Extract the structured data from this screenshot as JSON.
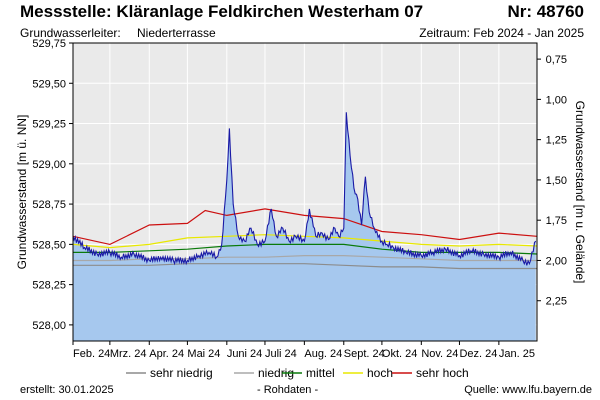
{
  "header": {
    "title": "Messstelle: Kläranlage Feldkirchen Westerham 07",
    "nr": "Nr: 48760",
    "aquifer_label": "Grundwasserleiter:",
    "aquifer_value": "Niederterrasse",
    "period": "Zeitraum: Feb 2024 - Jan 2025"
  },
  "footer": {
    "created": "erstellt:  30.01.2025",
    "rawdata": "- Rohdaten -",
    "source": "Quelle: www.lfu.bayern.de"
  },
  "colors": {
    "measured": "#1a1aa6",
    "fill": "#a6c8ee",
    "sehr_niedrig": "#8c8c8c",
    "niedrig": "#a8a8a8",
    "mittel": "#0a7a0a",
    "hoch": "#e8e800",
    "sehr_hoch": "#cc1010"
  },
  "chart_data": {
    "type": "line",
    "ylabel_left": "Grundwasserstand [m ü. NN]",
    "ylabel_right": "Grundwasserstand [m u. Gelände]",
    "ylim_left": [
      527.9,
      529.75
    ],
    "ylim_right": [
      2.5,
      0.65
    ],
    "yticks_left": [
      "529,75",
      "529,50",
      "529,25",
      "529,00",
      "528,75",
      "528,50",
      "528,25",
      "528,00"
    ],
    "yticks_left_values": [
      529.75,
      529.5,
      529.25,
      529.0,
      528.75,
      528.5,
      528.25,
      528.0
    ],
    "yticks_right": [
      "0,75",
      "1,00",
      "1,25",
      "1,50",
      "1,75",
      "2,00",
      "2,25"
    ],
    "yticks_right_values": [
      0.75,
      1.0,
      1.25,
      1.5,
      1.75,
      2.0,
      2.25
    ],
    "xlim": [
      "2024-02-01",
      "2025-01-31"
    ],
    "x_ticks": [
      "Feb. 24",
      "Mrz. 24",
      "Apr. 24",
      "Mai 24",
      "Juni 24",
      "Juli 24",
      "Aug. 24",
      "Sept. 24",
      "Okt. 24",
      "Nov. 24",
      "Dez. 24",
      "Jan. 25"
    ],
    "x_tick_dates": [
      "2024-02-01",
      "2024-03-01",
      "2024-04-01",
      "2024-05-01",
      "2024-06-01",
      "2024-07-01",
      "2024-08-01",
      "2024-09-01",
      "2024-10-01",
      "2024-11-01",
      "2024-12-01",
      "2025-01-01"
    ],
    "grid": true,
    "legend_placement": "bottom",
    "series": [
      {
        "name": "Rohdaten",
        "key": "measured",
        "x": [
          "2024-02-01",
          "2024-02-10",
          "2024-02-20",
          "2024-03-01",
          "2024-03-10",
          "2024-03-20",
          "2024-04-01",
          "2024-04-10",
          "2024-04-20",
          "2024-05-01",
          "2024-05-10",
          "2024-05-18",
          "2024-05-24",
          "2024-05-28",
          "2024-06-01",
          "2024-06-03",
          "2024-06-06",
          "2024-06-10",
          "2024-06-15",
          "2024-06-20",
          "2024-06-25",
          "2024-07-01",
          "2024-07-06",
          "2024-07-10",
          "2024-07-15",
          "2024-07-20",
          "2024-07-25",
          "2024-08-01",
          "2024-08-05",
          "2024-08-10",
          "2024-08-15",
          "2024-08-20",
          "2024-08-25",
          "2024-08-28",
          "2024-09-01",
          "2024-09-03",
          "2024-09-06",
          "2024-09-09",
          "2024-09-12",
          "2024-09-15",
          "2024-09-18",
          "2024-09-21",
          "2024-09-25",
          "2024-10-01",
          "2024-10-05",
          "2024-10-10",
          "2024-10-20",
          "2024-11-01",
          "2024-11-10",
          "2024-11-20",
          "2024-12-01",
          "2024-12-10",
          "2024-12-20",
          "2025-01-01",
          "2025-01-10",
          "2025-01-20",
          "2025-01-25",
          "2025-01-30"
        ],
        "y": [
          528.55,
          528.48,
          528.44,
          528.45,
          528.42,
          528.44,
          528.4,
          528.42,
          528.4,
          528.4,
          528.43,
          528.45,
          528.42,
          528.5,
          528.9,
          529.22,
          528.75,
          528.55,
          528.52,
          528.6,
          528.5,
          528.52,
          528.72,
          528.55,
          528.6,
          528.52,
          528.55,
          528.52,
          528.72,
          528.55,
          528.57,
          528.53,
          528.6,
          528.55,
          528.6,
          529.32,
          529.05,
          528.85,
          528.78,
          528.62,
          528.92,
          528.7,
          528.6,
          528.52,
          528.5,
          528.48,
          528.45,
          528.43,
          528.45,
          528.47,
          528.43,
          528.46,
          528.44,
          528.42,
          528.45,
          528.4,
          528.38,
          528.52
        ]
      },
      {
        "name": "sehr hoch",
        "key": "sehr_hoch",
        "x": [
          "2024-02-01",
          "2024-03-01",
          "2024-04-01",
          "2024-05-01",
          "2024-05-15",
          "2024-06-01",
          "2024-07-01",
          "2024-08-01",
          "2024-09-01",
          "2024-10-01",
          "2024-11-01",
          "2024-12-01",
          "2025-01-01",
          "2025-01-31"
        ],
        "y": [
          528.55,
          528.5,
          528.62,
          528.63,
          528.71,
          528.68,
          528.72,
          528.68,
          528.66,
          528.58,
          528.56,
          528.53,
          528.57,
          528.55
        ]
      },
      {
        "name": "hoch",
        "key": "hoch",
        "x": [
          "2024-02-01",
          "2024-03-01",
          "2024-04-01",
          "2024-05-01",
          "2024-06-01",
          "2024-07-01",
          "2024-08-01",
          "2024-09-01",
          "2024-10-01",
          "2024-11-01",
          "2024-12-01",
          "2025-01-01",
          "2025-01-31"
        ],
        "y": [
          528.5,
          528.48,
          528.5,
          528.54,
          528.55,
          528.56,
          528.55,
          528.54,
          528.52,
          528.5,
          528.49,
          528.5,
          528.49
        ]
      },
      {
        "name": "mittel",
        "key": "mittel",
        "x": [
          "2024-02-01",
          "2024-03-01",
          "2024-04-01",
          "2024-05-01",
          "2024-06-01",
          "2024-07-01",
          "2024-08-01",
          "2024-09-01",
          "2024-10-01",
          "2024-11-01",
          "2024-12-01",
          "2025-01-01",
          "2025-01-31"
        ],
        "y": [
          528.45,
          528.45,
          528.46,
          528.47,
          528.49,
          528.5,
          528.5,
          528.5,
          528.47,
          528.45,
          528.45,
          528.45,
          528.44
        ]
      },
      {
        "name": "niedrig",
        "key": "niedrig",
        "x": [
          "2024-02-01",
          "2024-03-01",
          "2024-04-01",
          "2024-05-01",
          "2024-06-01",
          "2024-07-01",
          "2024-08-01",
          "2024-09-01",
          "2024-10-01",
          "2024-11-01",
          "2024-12-01",
          "2025-01-01",
          "2025-01-31"
        ],
        "y": [
          528.4,
          528.4,
          528.41,
          528.41,
          528.42,
          528.42,
          528.43,
          528.43,
          528.42,
          528.41,
          528.4,
          528.4,
          528.4
        ]
      },
      {
        "name": "sehr niedrig",
        "key": "sehr_niedrig",
        "x": [
          "2024-02-01",
          "2024-03-01",
          "2024-04-01",
          "2024-05-01",
          "2024-06-01",
          "2024-07-01",
          "2024-08-01",
          "2024-09-01",
          "2024-10-01",
          "2024-11-01",
          "2024-12-01",
          "2025-01-01",
          "2025-01-31"
        ],
        "y": [
          528.37,
          528.37,
          528.37,
          528.38,
          528.38,
          528.38,
          528.38,
          528.37,
          528.36,
          528.36,
          528.35,
          528.35,
          528.35
        ]
      }
    ],
    "legend": [
      "sehr niedrig",
      "niedrig",
      "mittel",
      "hoch",
      "sehr hoch"
    ]
  }
}
